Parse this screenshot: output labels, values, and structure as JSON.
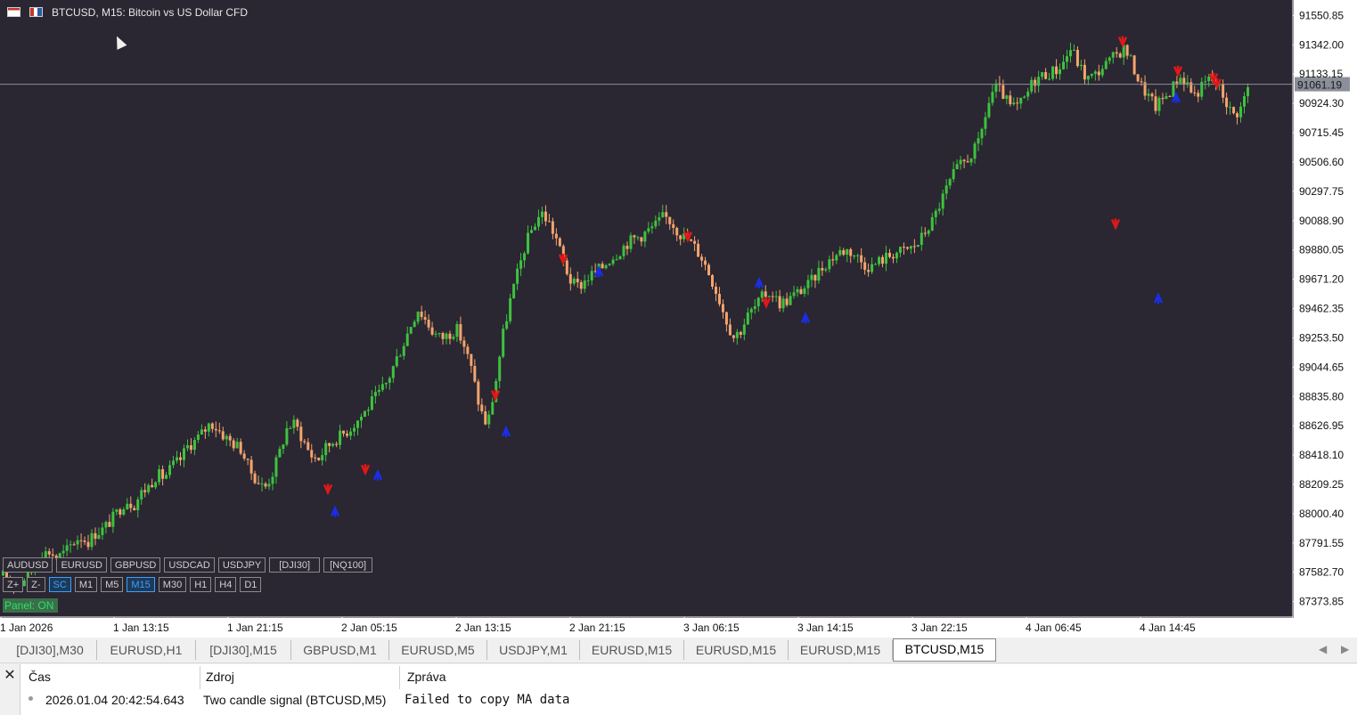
{
  "colors": {
    "background": "#2a2632",
    "bull": "#3ec23e",
    "bear": "#f4a46c",
    "grid_axis": "#ffffff",
    "price_line": "#8a8f99",
    "sell_arrow": "#e01818",
    "buy_arrow": "#1a2ee6"
  },
  "chart": {
    "title": "BTCUSD, M15:  Bitcoin vs US Dollar CFD",
    "icons": [
      "calendar-icon",
      "chart-window-icon"
    ],
    "current_price": "91061.19",
    "price_labels": [
      "91550.85",
      "91342.00",
      "91133.15",
      "90924.30",
      "90715.45",
      "90506.60",
      "90297.75",
      "90088.90",
      "89880.05",
      "89671.20",
      "89462.35",
      "89253.50",
      "89044.65",
      "88835.80",
      "88626.95",
      "88418.10",
      "88209.25",
      "88000.40",
      "87791.55",
      "87582.70",
      "87373.85"
    ],
    "time_labels": [
      "1 Jan 2026",
      "1 Jan 13:15",
      "1 Jan 21:15",
      "2 Jan 05:15",
      "2 Jan 13:15",
      "2 Jan 21:15",
      "3 Jan 06:15",
      "3 Jan 14:15",
      "3 Jan 22:15",
      "4 Jan 06:45",
      "4 Jan 14:45"
    ]
  },
  "panel": {
    "symbols": [
      "AUDUSD",
      "EURUSD",
      "GBPUSD",
      "USDCAD",
      "USDJPY",
      "[DJI30]",
      "[NQ100]"
    ],
    "controls": [
      "Z+",
      "Z-",
      "SC",
      "M1",
      "M5",
      "M15",
      "M30",
      "H1",
      "H4",
      "D1"
    ],
    "active_controls": [
      "SC",
      "M15"
    ],
    "status": "Panel: ON"
  },
  "tabs": [
    "[DJI30],M30",
    "EURUSD,H1",
    "[DJI30],M15",
    "GBPUSD,M1",
    "EURUSD,M5",
    "USDJPY,M1",
    "EURUSD,M15",
    "EURUSD,M15",
    "EURUSD,M15",
    "BTCUSD,M15"
  ],
  "active_tab": "BTCUSD,M15",
  "log": {
    "close_label": "✕",
    "headers": {
      "time": "Čas",
      "source": "Zdroj",
      "message": "Zpráva"
    },
    "rows": [
      {
        "time": "2026.01.04 20:42:54.643",
        "source": "Two candle signal (BTCUSD,M5)",
        "message": "Failed to copy MA data"
      }
    ]
  },
  "chart_data": {
    "type": "candlestick",
    "y_range": [
      87270,
      91655
    ],
    "y_ticks": [
      91550.85,
      91342.0,
      91133.15,
      90924.3,
      90715.45,
      90506.6,
      90297.75,
      90088.9,
      89880.05,
      89671.2,
      89462.35,
      89253.5,
      89044.65,
      88835.8,
      88626.95,
      88418.1,
      88209.25,
      88000.4,
      87791.55,
      87582.7,
      87373.85
    ],
    "x_ticks": [
      "1 Jan 2026",
      "1 Jan 13:15",
      "1 Jan 21:15",
      "2 Jan 05:15",
      "2 Jan 13:15",
      "2 Jan 21:15",
      "3 Jan 06:15",
      "3 Jan 14:15",
      "3 Jan 22:15",
      "4 Jan 06:45",
      "4 Jan 14:45"
    ],
    "current_price": 91061.19,
    "close_path": [
      87560,
      87520,
      87480,
      87560,
      87620,
      87710,
      87730,
      87690,
      87720,
      87790,
      87840,
      87800,
      87860,
      87890,
      87950,
      88020,
      88100,
      88060,
      88150,
      88200,
      88280,
      88260,
      88340,
      88380,
      88480,
      88520,
      88580,
      88650,
      88600,
      88540,
      88500,
      88460,
      88320,
      88240,
      88180,
      88280,
      88440,
      88620,
      88640,
      88530,
      88420,
      88390,
      88470,
      88520,
      88560,
      88600,
      88660,
      88720,
      88800,
      88860,
      88940,
      89080,
      89200,
      89340,
      89460,
      89380,
      89290,
      89250,
      89280,
      89320,
      89200,
      89020,
      88760,
      88620,
      88900,
      89260,
      89520,
      89720,
      89920,
      90050,
      90150,
      90080,
      89960,
      89780,
      89640,
      89620,
      89680,
      89720,
      89760,
      89820,
      89860,
      89920,
      89960,
      89980,
      90020,
      90060,
      90120,
      90080,
      90000,
      89960,
      89900,
      89820,
      89700,
      89560,
      89400,
      89260,
      89310,
      89420,
      89480,
      89560,
      89580,
      89500,
      89520,
      89560,
      89600,
      89640,
      89720,
      89780,
      89830,
      89870,
      89880,
      89840,
      89780,
      89760,
      89800,
      89830,
      89860,
      89870,
      89890,
      89920,
      90010,
      90090,
      90220,
      90340,
      90450,
      90500,
      90560,
      90640,
      90880,
      91040,
      91000,
      90900,
      90900,
      90960,
      91080,
      91120,
      91140,
      91160,
      91220,
      91320,
      91200,
      91100,
      91120,
      91180,
      91220,
      91280,
      91320,
      91200,
      91060,
      90980,
      90900,
      90960,
      91020,
      91120,
      91080,
      90980,
      91040,
      91100,
      91060,
      90960,
      90840,
      90880,
      91040
    ],
    "sell_signals": [
      89790,
      88820,
      88150,
      88290,
      89950,
      90040,
      89480,
      91340,
      91130,
      91080,
      91040
    ],
    "buy_signals": [
      89750,
      88610,
      88040,
      88300,
      89670,
      89420,
      89560,
      90990
    ],
    "grid": false
  }
}
